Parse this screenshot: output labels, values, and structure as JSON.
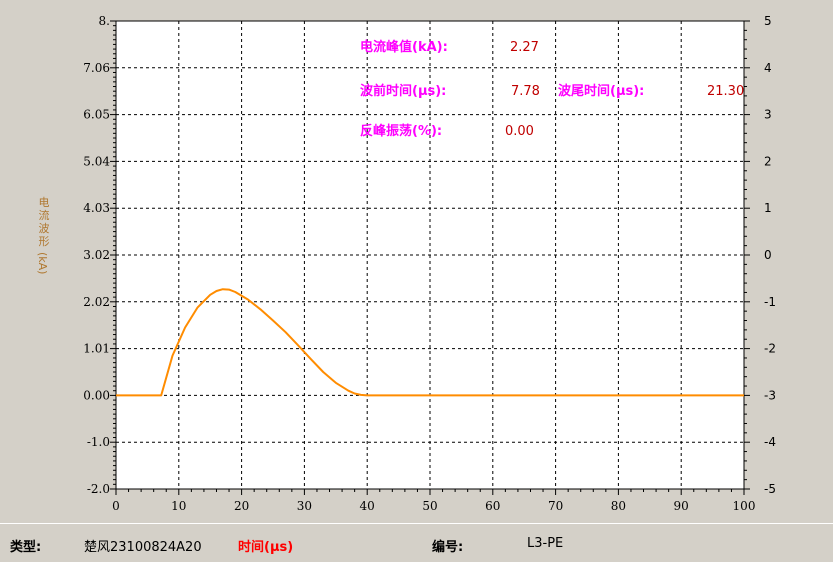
{
  "chart_data": {
    "type": "line",
    "left_axis": {
      "ticks": [
        "8.",
        "7.06",
        "6.05",
        "5.04",
        "4.03",
        "3.02",
        "2.02",
        "1.01",
        "0.00",
        "-1.0",
        "-2.0"
      ],
      "ylim": [
        -2.0,
        8.0
      ]
    },
    "right_axis": {
      "ticks": [
        "5",
        "4",
        "3",
        "2",
        "1",
        "0",
        "-1",
        "-2",
        "-3",
        "-4",
        "-5"
      ],
      "ylim": [
        -5,
        5
      ]
    },
    "x_axis": {
      "ticks": [
        "0",
        "10",
        "20",
        "30",
        "40",
        "50",
        "60",
        "70",
        "80",
        "90",
        "100"
      ],
      "xlim": [
        0,
        100
      ]
    },
    "ylabel": {
      "text": "电流波形",
      "unit": "(kA)"
    },
    "grid": true,
    "series": [
      {
        "color": "#ff8c00",
        "x": [
          0,
          7.2,
          9,
          11,
          13,
          15,
          16,
          17,
          18,
          19,
          21,
          23,
          25,
          27,
          29,
          31,
          33,
          35,
          37,
          38,
          39,
          40,
          45,
          100
        ],
        "y": [
          0.0,
          0.0,
          0.85,
          1.45,
          1.88,
          2.15,
          2.23,
          2.27,
          2.26,
          2.21,
          2.05,
          1.84,
          1.6,
          1.35,
          1.07,
          0.78,
          0.5,
          0.27,
          0.1,
          0.04,
          0.01,
          0.0,
          0.0,
          0.0
        ]
      }
    ],
    "annotations": {
      "peak_label": "电流峰值(kA):",
      "peak_value": "2.27",
      "front_label": "波前时间(μs):",
      "front_value": "7.78",
      "tail_label": "波尾时间(μs):",
      "tail_value": "21.30",
      "osc_label": "反峰振荡(%):",
      "osc_value": "0.00"
    },
    "colors": {
      "annotation_label": "#ff00ff",
      "annotation_value": "#c00000",
      "curve": "#ff8c00"
    }
  },
  "status_bar": {
    "type_label": "类型:",
    "type_value": "楚风23100824A20",
    "x_axis_label": "时间(μs)",
    "number_label": "编号:",
    "number_value": "L3-PE"
  }
}
